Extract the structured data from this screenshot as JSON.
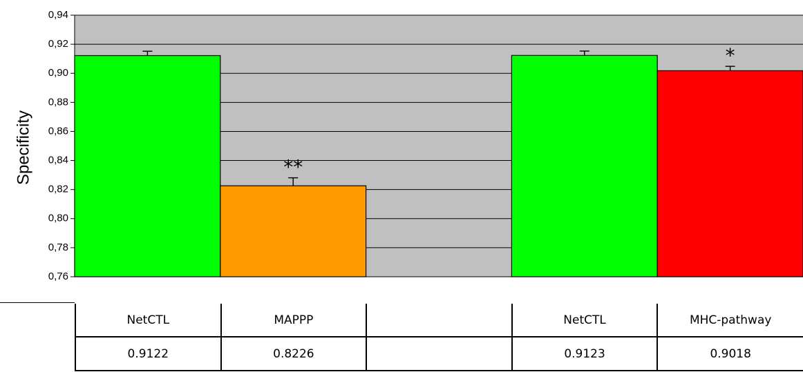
{
  "chart_data": {
    "type": "bar",
    "ylabel": "Specificity",
    "ylim": [
      0.76,
      0.94
    ],
    "yticks": [
      "0,94",
      "0,92",
      "0,90",
      "0,88",
      "0,86",
      "0,84",
      "0,82",
      "0,80",
      "0,78",
      "0,76"
    ],
    "grid": true,
    "plot_background": "#c0c0c0",
    "bars": [
      {
        "slot": 0,
        "value": 0.9122,
        "error": 0.003,
        "color": "#00ff00",
        "annotation": ""
      },
      {
        "slot": 1,
        "value": 0.8226,
        "error": 0.0055,
        "color": "#ff9900",
        "annotation": "**"
      },
      {
        "slot": 3,
        "value": 0.9123,
        "error": 0.003,
        "color": "#00ff00",
        "annotation": ""
      },
      {
        "slot": 4,
        "value": 0.9018,
        "error": 0.003,
        "color": "#ff0000",
        "annotation": "*"
      }
    ],
    "slots": 5,
    "table": {
      "row_labels": [
        "NetCTL",
        "MAPPP",
        "",
        "NetCTL",
        "MHC-pathway"
      ],
      "row_values": [
        "0.9122",
        "0.8226",
        "",
        "0.9123",
        "0.9018"
      ]
    }
  }
}
